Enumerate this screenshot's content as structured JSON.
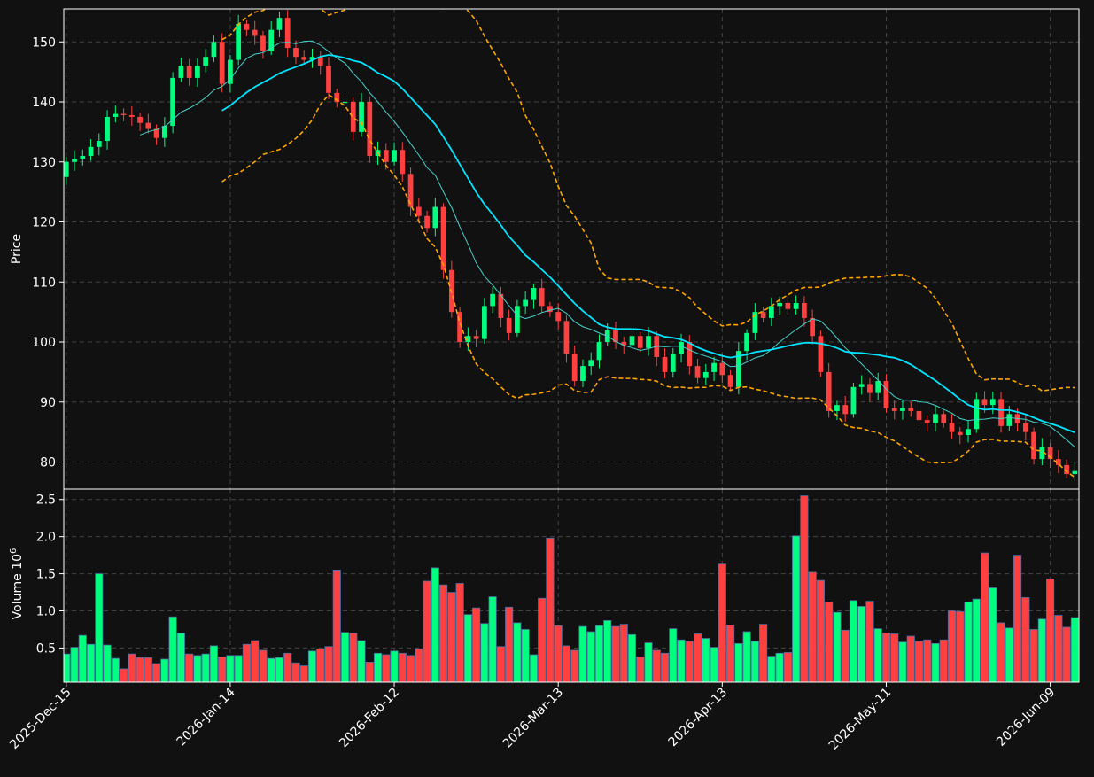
{
  "chart_data": {
    "type": "candlestick",
    "colors": {
      "background": "#111111",
      "up": "#00ff7f",
      "down": "#ff4040",
      "ma_short": "#48d1cc",
      "ma_long": "#00e5ff",
      "band": "#ffa500",
      "grid": "#444444",
      "text": "#ffffff"
    },
    "grid": true,
    "price_axis": {
      "label": "Price",
      "range": [
        75.5,
        155.5
      ],
      "ticks": [
        80,
        90,
        100,
        110,
        120,
        130,
        140,
        150
      ]
    },
    "volume_axis": {
      "label": "Volume",
      "multiplier": "10",
      "exponent": "6",
      "range": [
        0.04,
        2.64
      ],
      "ticks": [
        0.5,
        1.0,
        1.5,
        2.0,
        2.5
      ],
      "tick_labels": [
        "0.5",
        "1.0",
        "1.5",
        "2.0",
        "2.5"
      ]
    },
    "x_axis": {
      "tick_labels": [
        "2025-Dec-15",
        "2026-Jan-14",
        "2026-Feb-12",
        "2026-Mar-13",
        "2026-Apr-13",
        "2026-May-11",
        "2026-Jun-09"
      ],
      "tick_index": [
        0,
        20,
        40,
        60,
        80,
        100,
        120
      ]
    },
    "num_bars": 124,
    "x_range": [
      -0.3,
      123.5
    ],
    "close": [
      130,
      130.5,
      131,
      132.5,
      133.5,
      137.5,
      138,
      137.8,
      137.5,
      136.5,
      135.5,
      134,
      136,
      144,
      146,
      144,
      146,
      147.5,
      150,
      143,
      147,
      153,
      152,
      151,
      148.5,
      152,
      154,
      149,
      147.5,
      147,
      147.5,
      146,
      141.5,
      140,
      140,
      135,
      140,
      131,
      132,
      130,
      132,
      128,
      122.5,
      121,
      119,
      122.5,
      112,
      105,
      100,
      101,
      100.5,
      106,
      108,
      104,
      101.5,
      106,
      107,
      109,
      106,
      105,
      103.5,
      98,
      93.5,
      96,
      97,
      100,
      102,
      100,
      99.5,
      101,
      99,
      101,
      97.5,
      95,
      98,
      100,
      96,
      94,
      95,
      96.5,
      94.5,
      92.5,
      98.5,
      101.5,
      105,
      104,
      106,
      106.5,
      105.5,
      106.5,
      104,
      101,
      95,
      88.5,
      89.5,
      88,
      92.5,
      93,
      91.5,
      93.5,
      89,
      88.5,
      89,
      88.5,
      87,
      86.5,
      88,
      86.5,
      85,
      84.5,
      85.5,
      90.5,
      89.5,
      90.5,
      86,
      88,
      86.5,
      85,
      80.5,
      82.5,
      80.5,
      79.5,
      78,
      78.5
    ],
    "volume_millions": [
      0.42,
      0.51,
      0.67,
      0.55,
      1.5,
      0.54,
      0.36,
      0.22,
      0.42,
      0.37,
      0.37,
      0.29,
      0.35,
      0.92,
      0.7,
      0.42,
      0.4,
      0.42,
      0.53,
      0.38,
      0.4,
      0.4,
      0.55,
      0.6,
      0.47,
      0.36,
      0.37,
      0.43,
      0.3,
      0.26,
      0.46,
      0.49,
      0.52,
      1.55,
      0.71,
      0.7,
      0.6,
      0.31,
      0.43,
      0.41,
      0.46,
      0.43,
      0.4,
      0.49,
      1.4,
      1.58,
      1.35,
      1.25,
      1.37,
      0.95,
      1.04,
      0.83,
      1.19,
      0.52,
      1.05,
      0.84,
      0.75,
      0.41,
      1.17,
      1.98,
      0.8,
      0.53,
      0.47,
      0.79,
      0.72,
      0.8,
      0.87,
      0.79,
      0.82,
      0.68,
      0.38,
      0.57,
      0.47,
      0.43,
      0.76,
      0.61,
      0.59,
      0.69,
      0.63,
      0.51,
      1.63,
      0.81,
      0.56,
      0.72,
      0.59,
      0.82,
      0.39,
      0.43,
      0.44,
      2.01,
      2.55,
      1.52,
      1.41,
      1.12,
      0.98,
      0.74,
      1.14,
      1.06,
      1.13,
      0.76,
      0.7,
      0.69,
      0.58,
      0.66,
      0.59,
      0.61,
      0.56,
      0.61,
      1.0,
      0.99,
      1.12,
      1.16,
      1.78,
      1.31,
      0.84,
      0.77,
      1.75,
      1.18,
      0.75,
      0.89,
      1.43,
      0.94,
      0.78,
      0.91
    ],
    "ma_short_period": 10,
    "ma_long_period": 20,
    "band_period": 20,
    "band_stdev": 2
  }
}
